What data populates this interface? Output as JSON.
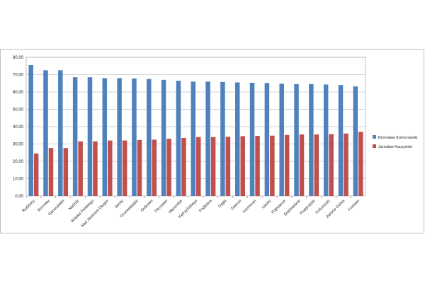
{
  "chart_data": {
    "type": "bar",
    "title": "",
    "xlabel": "",
    "ylabel": "",
    "ylim": [
      0,
      80
    ],
    "yticks": [
      "0,00",
      "10,00",
      "20,00",
      "30,00",
      "40,00",
      "50,00",
      "60,00",
      "70,00",
      "80,00"
    ],
    "grid": true,
    "legend_position": "right",
    "categories": [
      "Rudzkiny",
      "Bronowy",
      "Generalskie",
      "Nadzdz",
      "Wojska Polskiego",
      "Nad Jeziorem Długim",
      "Jaroty",
      "Grunwaldzkie",
      "Gutkowo",
      "Pieczewo",
      "Mazurskie",
      "Kętrzyńskiego",
      "Podleśna",
      "Dajtki",
      "Zatorze",
      "Kormoran",
      "Likusy",
      "Pojezierze",
      "Śródmieście",
      "Podgrodzie",
      "Kościuszki",
      "Zielona Górka",
      "Kortowo"
    ],
    "series": [
      {
        "name": "Bronisław Komorowski",
        "color": "#4F81BD",
        "values": [
          75.5,
          72.5,
          72.5,
          68.5,
          68.5,
          68.0,
          68.0,
          67.8,
          67.5,
          67.0,
          66.5,
          66.0,
          66.0,
          65.8,
          65.5,
          65.3,
          65.2,
          64.8,
          64.5,
          64.5,
          64.3,
          64.0,
          63.2
        ]
      },
      {
        "name": "Jarosław Kaczyński",
        "color": "#C0504D",
        "values": [
          24.5,
          27.7,
          27.7,
          31.5,
          31.5,
          32.0,
          32.0,
          32.3,
          32.5,
          33.0,
          33.5,
          34.0,
          34.0,
          34.2,
          34.5,
          34.7,
          34.8,
          35.2,
          35.5,
          35.5,
          35.7,
          36.0,
          37.0
        ]
      }
    ]
  }
}
